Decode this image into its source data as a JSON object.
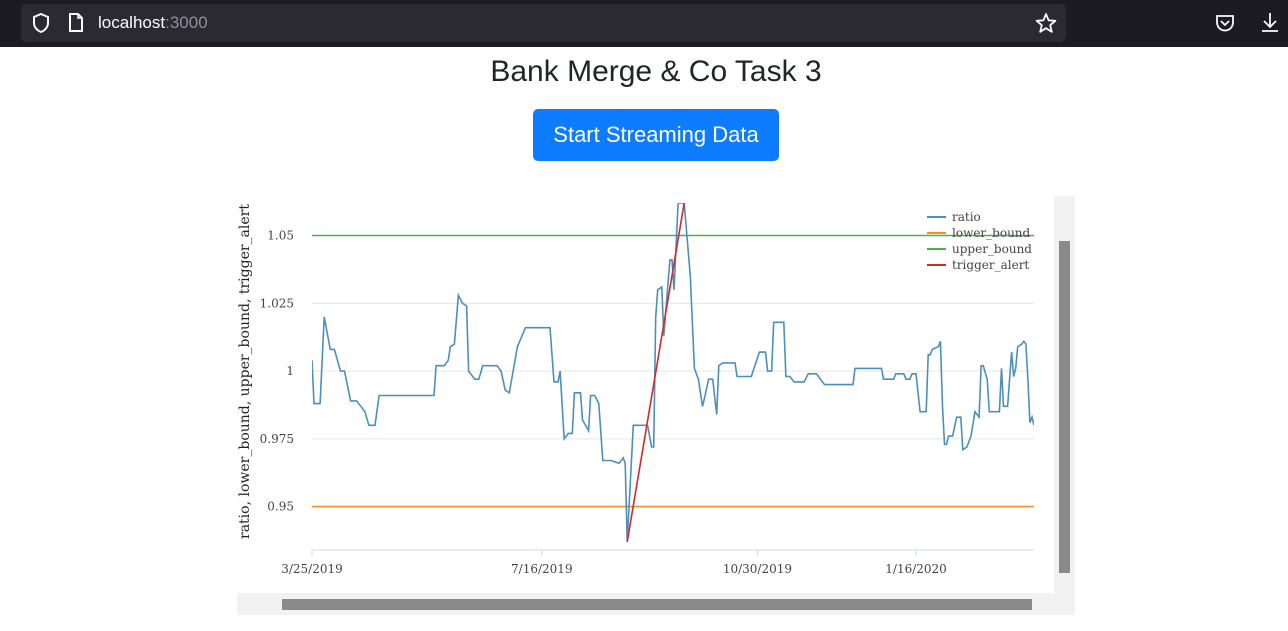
{
  "browser": {
    "url_host": "localhost",
    "url_port": ":3000",
    "icons": [
      "shield-icon",
      "page-icon",
      "star-icon",
      "pocket-icon",
      "download-icon"
    ]
  },
  "page": {
    "title": "Bank Merge & Co Task 3",
    "button_label": "Start Streaming Data",
    "button_color": "#0d7cff"
  },
  "chart_data": {
    "type": "line",
    "ylabel": "ratio, lower_bound, upper_bound, trigger_alert",
    "ylim": [
      0.934,
      1.062
    ],
    "yticks": [
      0.95,
      0.975,
      1,
      1.025,
      1.05
    ],
    "ytick_labels": [
      "0.95",
      "0.975",
      "1",
      "1.025",
      "1.05"
    ],
    "xlim": [
      "2019-03-25",
      "2020-03-14"
    ],
    "xticks": [
      "2019-03-25",
      "2019-07-16",
      "2019-10-30",
      "2020-01-16"
    ],
    "xtick_labels": [
      "3/25/2019",
      "7/16/2019",
      "10/30/2019",
      "1/16/2020"
    ],
    "grid": true,
    "legend_position": "top-right",
    "series": [
      {
        "name": "ratio",
        "color": "#4c8fbd",
        "points": [
          [
            "2019-03-25",
            1.004
          ],
          [
            "2019-03-26",
            0.988
          ],
          [
            "2019-03-29",
            0.988
          ],
          [
            "2019-03-31",
            1.02
          ],
          [
            "2019-04-03",
            1.008
          ],
          [
            "2019-04-05",
            1.008
          ],
          [
            "2019-04-08",
            1.0
          ],
          [
            "2019-04-10",
            1.0
          ],
          [
            "2019-04-13",
            0.989
          ],
          [
            "2019-04-16",
            0.989
          ],
          [
            "2019-04-20",
            0.985
          ],
          [
            "2019-04-22",
            0.98
          ],
          [
            "2019-04-25",
            0.98
          ],
          [
            "2019-04-27",
            0.991
          ],
          [
            "2019-05-12",
            0.991
          ],
          [
            "2019-05-24",
            0.991
          ],
          [
            "2019-05-25",
            1.002
          ],
          [
            "2019-05-29",
            1.002
          ],
          [
            "2019-05-31",
            1.004
          ],
          [
            "2019-06-01",
            1.009
          ],
          [
            "2019-06-03",
            1.01
          ],
          [
            "2019-06-05",
            1.028
          ],
          [
            "2019-06-07",
            1.025
          ],
          [
            "2019-06-09",
            1.024
          ],
          [
            "2019-06-10",
            1.0
          ],
          [
            "2019-06-13",
            0.997
          ],
          [
            "2019-06-15",
            0.997
          ],
          [
            "2019-06-17",
            1.002
          ],
          [
            "2019-06-24",
            1.002
          ],
          [
            "2019-06-26",
            1.0
          ],
          [
            "2019-06-28",
            0.993
          ],
          [
            "2019-06-30",
            0.992
          ],
          [
            "2019-07-04",
            1.009
          ],
          [
            "2019-07-08",
            1.016
          ],
          [
            "2019-07-16",
            1.016
          ],
          [
            "2019-07-20",
            1.016
          ],
          [
            "2019-07-22",
            0.996
          ],
          [
            "2019-07-24",
            0.996
          ],
          [
            "2019-07-25",
            1.0
          ],
          [
            "2019-07-27",
            0.975
          ],
          [
            "2019-07-29",
            0.977
          ],
          [
            "2019-07-31",
            0.977
          ],
          [
            "2019-08-01",
            0.992
          ],
          [
            "2019-08-04",
            0.992
          ],
          [
            "2019-08-05",
            0.982
          ],
          [
            "2019-08-08",
            0.978
          ],
          [
            "2019-08-09",
            0.991
          ],
          [
            "2019-08-11",
            0.991
          ],
          [
            "2019-08-13",
            0.988
          ],
          [
            "2019-08-15",
            0.967
          ],
          [
            "2019-08-19",
            0.967
          ],
          [
            "2019-08-23",
            0.966
          ],
          [
            "2019-08-25",
            0.968
          ],
          [
            "2019-08-26",
            0.966
          ],
          [
            "2019-08-27",
            0.937
          ],
          [
            "2019-08-30",
            0.98
          ],
          [
            "2019-09-03",
            0.98
          ],
          [
            "2019-09-06",
            0.98
          ],
          [
            "2019-09-08",
            0.972
          ],
          [
            "2019-09-09",
            0.972
          ],
          [
            "2019-09-10",
            1.02
          ],
          [
            "2019-09-11",
            1.03
          ],
          [
            "2019-09-13",
            1.031
          ],
          [
            "2019-09-14",
            1.013
          ],
          [
            "2019-09-17",
            1.041
          ],
          [
            "2019-09-18",
            1.041
          ],
          [
            "2019-09-19",
            1.03
          ],
          [
            "2019-09-21",
            1.062
          ],
          [
            "2019-09-24",
            1.062
          ],
          [
            "2019-09-27",
            1.035
          ],
          [
            "2019-09-29",
            1.001
          ],
          [
            "2019-10-01",
            0.997
          ],
          [
            "2019-10-03",
            0.987
          ],
          [
            "2019-10-04",
            0.99
          ],
          [
            "2019-10-06",
            0.997
          ],
          [
            "2019-10-08",
            0.997
          ],
          [
            "2019-10-10",
            0.984
          ],
          [
            "2019-10-11",
            1.002
          ],
          [
            "2019-10-13",
            1.003
          ],
          [
            "2019-10-19",
            1.003
          ],
          [
            "2019-10-20",
            0.998
          ],
          [
            "2019-10-27",
            0.998
          ],
          [
            "2019-10-31",
            1.007
          ],
          [
            "2019-11-03",
            1.007
          ],
          [
            "2019-11-04",
            1.0
          ],
          [
            "2019-11-06",
            1.0
          ],
          [
            "2019-11-07",
            1.018
          ],
          [
            "2019-11-12",
            1.018
          ],
          [
            "2019-11-13",
            0.998
          ],
          [
            "2019-11-15",
            0.998
          ],
          [
            "2019-11-17",
            0.996
          ],
          [
            "2019-11-22",
            0.996
          ],
          [
            "2019-11-24",
            0.999
          ],
          [
            "2019-11-28",
            0.999
          ],
          [
            "2019-12-02",
            0.995
          ],
          [
            "2019-12-16",
            0.995
          ],
          [
            "2019-12-17",
            1.001
          ],
          [
            "2019-12-30",
            1.001
          ],
          [
            "2019-12-31",
            0.997
          ],
          [
            "2020-01-05",
            0.997
          ],
          [
            "2020-01-06",
            0.999
          ],
          [
            "2020-01-10",
            0.999
          ],
          [
            "2020-01-11",
            0.997
          ],
          [
            "2020-01-13",
            0.997
          ],
          [
            "2020-01-14",
            0.999
          ],
          [
            "2020-01-16",
            0.999
          ],
          [
            "2020-01-18",
            0.985
          ],
          [
            "2020-01-21",
            0.985
          ],
          [
            "2020-01-22",
            1.006
          ],
          [
            "2020-01-23",
            1.006
          ],
          [
            "2020-01-24",
            1.008
          ],
          [
            "2020-01-27",
            1.009
          ],
          [
            "2020-01-28",
            1.011
          ],
          [
            "2020-01-29",
            0.987
          ],
          [
            "2020-01-30",
            0.973
          ],
          [
            "2020-01-31",
            0.973
          ],
          [
            "2020-02-01",
            0.976
          ],
          [
            "2020-02-03",
            0.976
          ],
          [
            "2020-02-05",
            0.983
          ],
          [
            "2020-02-07",
            0.983
          ],
          [
            "2020-02-08",
            0.971
          ],
          [
            "2020-02-10",
            0.972
          ],
          [
            "2020-02-12",
            0.976
          ],
          [
            "2020-02-14",
            0.985
          ],
          [
            "2020-02-16",
            0.983
          ],
          [
            "2020-02-17",
            1.002
          ],
          [
            "2020-02-18",
            1.002
          ],
          [
            "2020-02-20",
            0.997
          ],
          [
            "2020-02-21",
            0.985
          ],
          [
            "2020-02-24",
            0.985
          ],
          [
            "2020-02-26",
            0.985
          ],
          [
            "2020-02-27",
            1.001
          ],
          [
            "2020-02-28",
            0.987
          ],
          [
            "2020-03-01",
            0.987
          ],
          [
            "2020-03-03",
            1.007
          ],
          [
            "2020-03-04",
            0.998
          ],
          [
            "2020-03-05",
            1.001
          ],
          [
            "2020-03-06",
            1.009
          ],
          [
            "2020-03-08",
            1.01
          ],
          [
            "2020-03-09",
            1.011
          ],
          [
            "2020-03-10",
            1.01
          ],
          [
            "2020-03-11",
            0.997
          ],
          [
            "2020-03-12",
            0.981
          ],
          [
            "2020-03-13",
            0.983
          ],
          [
            "2020-03-14",
            0.98
          ]
        ]
      },
      {
        "name": "lower_bound",
        "color": "#f28e2b",
        "points": [
          [
            "2019-03-25",
            0.95
          ],
          [
            "2020-03-14",
            0.95
          ]
        ]
      },
      {
        "name": "upper_bound",
        "color": "#4caf50",
        "points": [
          [
            "2019-03-25",
            1.05
          ],
          [
            "2020-03-14",
            1.05
          ]
        ]
      },
      {
        "name": "trigger_alert",
        "color": "#d62728",
        "points": [
          [
            "2019-08-27",
            0.937
          ],
          [
            "2019-09-24",
            1.062
          ]
        ]
      }
    ]
  }
}
